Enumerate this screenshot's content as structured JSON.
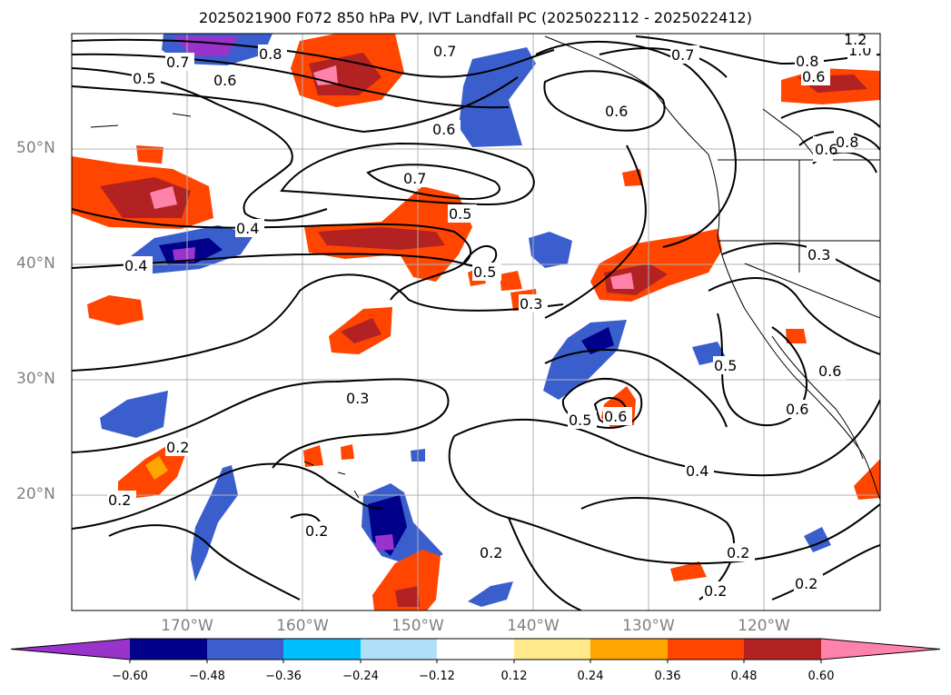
{
  "title": "2025021900 F072 850 hPa PV, IVT Landfall PC (2025022112 - 2025022412)",
  "map": {
    "lon_labels": [
      "170°W",
      "160°W",
      "150°W",
      "140°W",
      "130°W",
      "120°W"
    ],
    "lat_labels": [
      "50°N",
      "40°N",
      "30°N",
      "20°N"
    ],
    "contour_labels": [
      {
        "text": "0.5"
      },
      {
        "text": "0.6"
      },
      {
        "text": "0.7"
      },
      {
        "text": "0.8"
      },
      {
        "text": "0.4"
      },
      {
        "text": "0.6"
      },
      {
        "text": "0.7"
      },
      {
        "text": "0.5"
      },
      {
        "text": "0.4"
      },
      {
        "text": "0.7"
      },
      {
        "text": "0.5"
      },
      {
        "text": "0.3"
      },
      {
        "text": "0.3"
      },
      {
        "text": "0.2"
      },
      {
        "text": "0.2"
      },
      {
        "text": "0.2"
      },
      {
        "text": "0.5"
      },
      {
        "text": "0.6"
      },
      {
        "text": "0.4"
      },
      {
        "text": "0.2"
      },
      {
        "text": "0.2"
      },
      {
        "text": "0.2"
      },
      {
        "text": "0.5"
      },
      {
        "text": "0.6"
      },
      {
        "text": "0.2"
      },
      {
        "text": "0.3"
      },
      {
        "text": "0.8"
      },
      {
        "text": "0.6"
      },
      {
        "text": "1.0"
      },
      {
        "text": "1.2"
      },
      {
        "text": "0.7"
      },
      {
        "text": "0.8"
      },
      {
        "text": "0.6"
      },
      {
        "text": "0.6"
      },
      {
        "text": "0.6"
      }
    ]
  },
  "colorbar": {
    "colors": [
      "#9933cc",
      "#00008b",
      "#3a5fcd",
      "#00bfff",
      "#b0e0f7",
      "#ffffff",
      "#ffe98a",
      "#ffa500",
      "#ff4500",
      "#b22222",
      "#ff82ab"
    ],
    "ticks": [
      "−0.60",
      "−0.48",
      "−0.36",
      "−0.24",
      "−0.12",
      "0.12",
      "0.24",
      "0.36",
      "0.48",
      "0.60"
    ]
  }
}
